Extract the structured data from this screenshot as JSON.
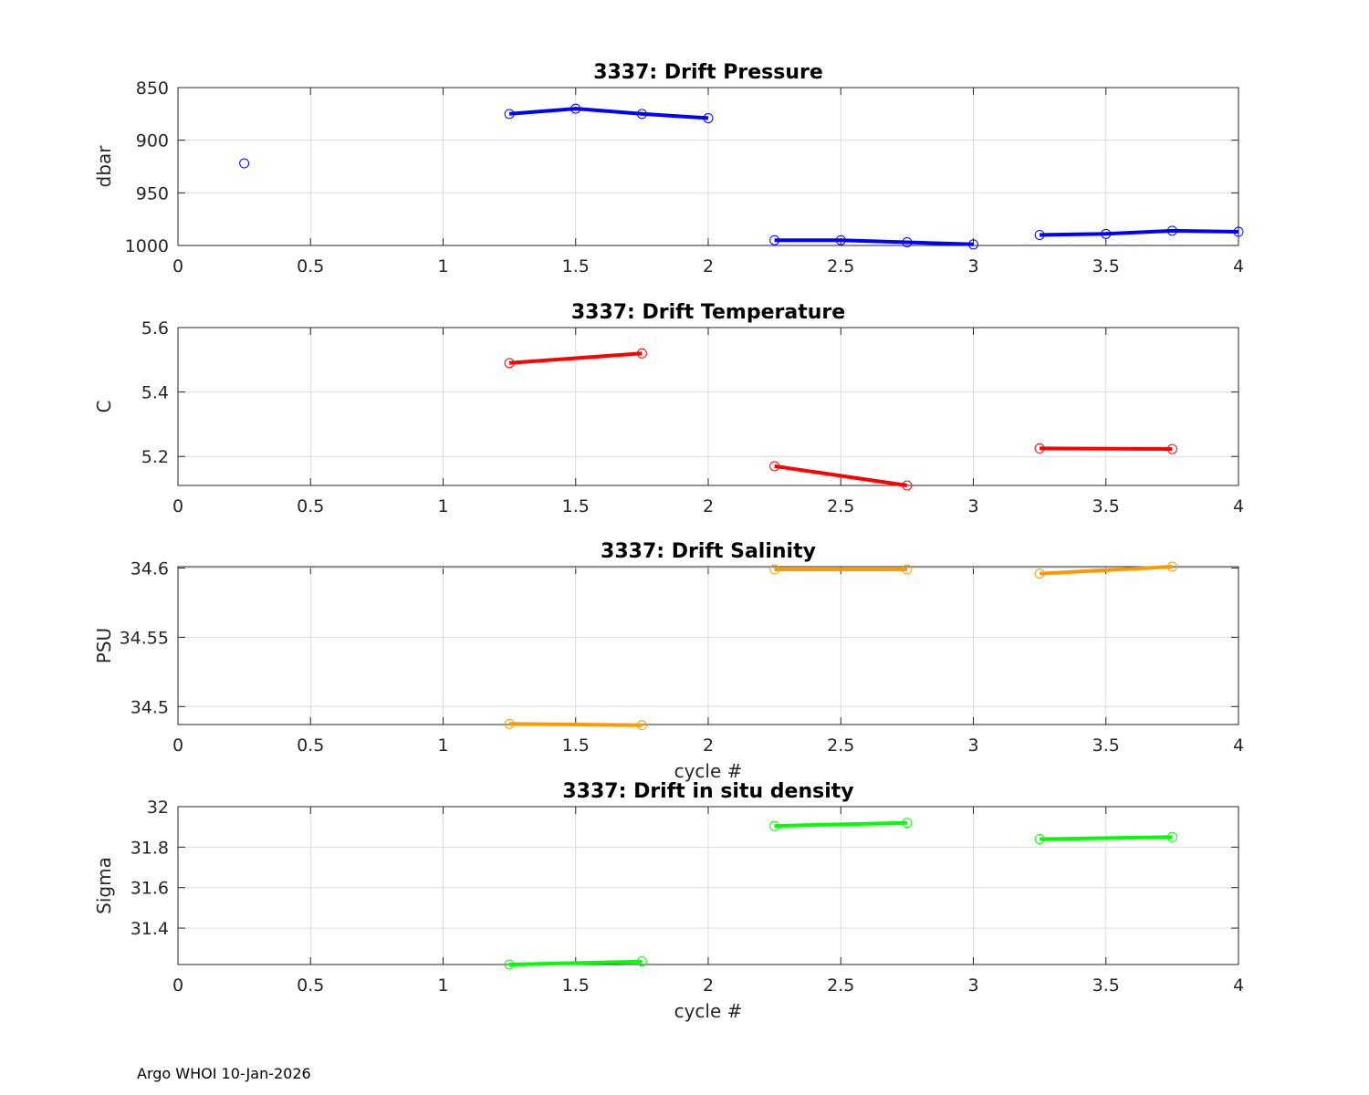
{
  "footer": "Argo WHOI 10-Jan-2026",
  "chart_data": [
    {
      "type": "line",
      "title": "3337: Drift Pressure",
      "xlabel": "",
      "ylabel": "dbar",
      "xlim": [
        0,
        4
      ],
      "ylim": [
        850,
        1000
      ],
      "y_reversed": true,
      "grid": true,
      "xticks": [
        "0",
        "0.5",
        "1",
        "1.5",
        "2",
        "2.5",
        "3",
        "3.5",
        "4"
      ],
      "yticks": [
        "850",
        "900",
        "950",
        "1000"
      ],
      "color": "#0000ff",
      "segments": [
        {
          "x": [
            0.25
          ],
          "y": [
            922
          ]
        },
        {
          "x": [
            1.25,
            1.5,
            1.75,
            2.0
          ],
          "y": [
            875,
            870,
            875,
            879
          ]
        },
        {
          "x": [
            2.25,
            2.5,
            2.75,
            3.0
          ],
          "y": [
            995,
            995,
            997,
            999
          ]
        },
        {
          "x": [
            3.25,
            3.5,
            3.75,
            4.0
          ],
          "y": [
            990,
            989,
            986,
            987
          ]
        }
      ]
    },
    {
      "type": "line",
      "title": "3337: Drift Temperature",
      "xlabel": "",
      "ylabel": "C",
      "xlim": [
        0,
        4
      ],
      "ylim": [
        5.11,
        5.6
      ],
      "grid": true,
      "xticks": [
        "0",
        "0.5",
        "1",
        "1.5",
        "2",
        "2.5",
        "3",
        "3.5",
        "4"
      ],
      "yticks": [
        "5.2",
        "5.4",
        "5.6"
      ],
      "color": "#ff0000",
      "segments": [
        {
          "x": [
            1.25,
            1.75
          ],
          "y": [
            5.49,
            5.52
          ]
        },
        {
          "x": [
            2.25,
            2.75
          ],
          "y": [
            5.17,
            5.11
          ]
        },
        {
          "x": [
            3.25,
            3.75
          ],
          "y": [
            5.225,
            5.223
          ]
        }
      ]
    },
    {
      "type": "line",
      "title": "3337: Drift Salinity",
      "xlabel": "cycle #",
      "ylabel": "PSU",
      "xlim": [
        0,
        4
      ],
      "ylim": [
        34.487,
        34.601
      ],
      "grid": true,
      "xticks": [
        "0",
        "0.5",
        "1",
        "1.5",
        "2",
        "2.5",
        "3",
        "3.5",
        "4"
      ],
      "yticks": [
        "34.5",
        "34.55",
        "34.6"
      ],
      "color": "#ff9900",
      "segments": [
        {
          "x": [
            1.25,
            1.75
          ],
          "y": [
            34.4875,
            34.4865
          ]
        },
        {
          "x": [
            2.25,
            2.75
          ],
          "y": [
            34.599,
            34.599
          ]
        },
        {
          "x": [
            3.25,
            3.75
          ],
          "y": [
            34.596,
            34.601
          ]
        }
      ]
    },
    {
      "type": "line",
      "title": "3337: Drift in situ density",
      "xlabel": "cycle #",
      "ylabel": "Sigma",
      "xlim": [
        0,
        4
      ],
      "ylim": [
        31.22,
        32.0
      ],
      "grid": true,
      "xticks": [
        "0",
        "0.5",
        "1",
        "1.5",
        "2",
        "2.5",
        "3",
        "3.5",
        "4"
      ],
      "yticks": [
        "31.4",
        "31.6",
        "31.8",
        "32"
      ],
      "color": "#00ff00",
      "segments": [
        {
          "x": [
            1.25,
            1.75
          ],
          "y": [
            31.22,
            31.235
          ]
        },
        {
          "x": [
            2.25,
            2.75
          ],
          "y": [
            31.905,
            31.92
          ]
        },
        {
          "x": [
            3.25,
            3.75
          ],
          "y": [
            31.84,
            31.85
          ]
        }
      ]
    }
  ]
}
